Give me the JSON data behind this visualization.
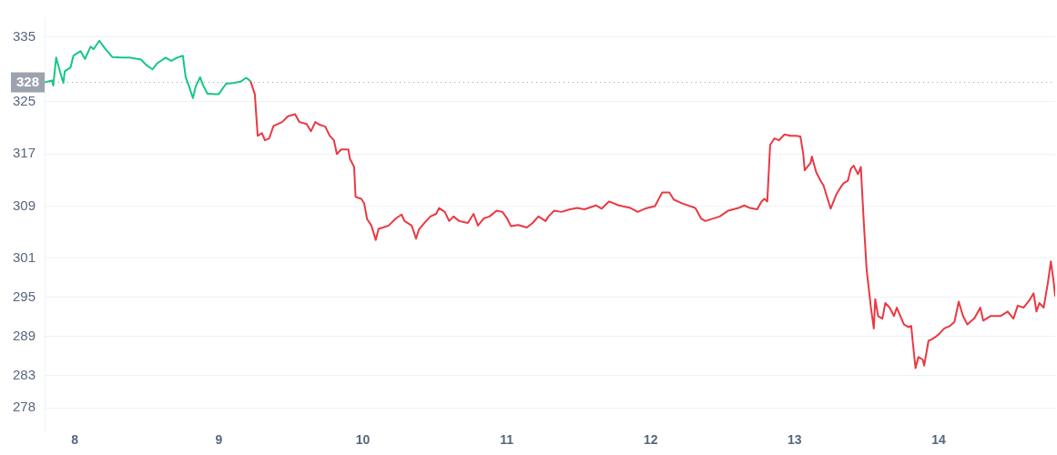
{
  "chart_data": {
    "type": "line",
    "xlim": [
      7.79,
      14.81
    ],
    "xticks": [
      8,
      9,
      10,
      11,
      12,
      13,
      14
    ],
    "ylim": [
      274.5,
      338
    ],
    "yticks": [
      278,
      283,
      289,
      295,
      301,
      309,
      317,
      325,
      335
    ],
    "grid": "y",
    "legend": false,
    "marker": "none",
    "line_style": "solid",
    "ref_lines": [
      {
        "axis": "y",
        "value": 328,
        "label": "328",
        "color": "#9ca3af",
        "line_style": "dotted"
      }
    ],
    "series": [
      {
        "color": "#16c784",
        "x": [
          7.79,
          7.84,
          7.85,
          7.87,
          7.9,
          7.92,
          7.93,
          7.97,
          7.99,
          8.04,
          8.07,
          8.11,
          8.13,
          8.17,
          8.21,
          8.26,
          8.33,
          8.38,
          8.46,
          8.5,
          8.54,
          8.57,
          8.63,
          8.67,
          8.71,
          8.75,
          8.77,
          8.79,
          8.82,
          8.84,
          8.87,
          8.89,
          8.92,
          8.97,
          9,
          9.05,
          9.1,
          9.15,
          9.19,
          9.22
        ],
        "values": [
          328,
          328.3,
          327.5,
          331.8,
          329.4,
          327.9,
          329.7,
          330.3,
          332.1,
          332.8,
          331.6,
          333.5,
          333.1,
          334.4,
          333.2,
          331.9,
          331.8,
          331.8,
          331.5,
          330.6,
          330,
          330.9,
          331.8,
          331.3,
          331.8,
          332.1,
          328.8,
          327.6,
          325.6,
          327.4,
          328.8,
          327.6,
          326.3,
          326.2,
          326.2,
          327.8,
          327.9,
          328.1,
          328.7,
          328.2
        ]
      },
      {
        "color": "#ea3943",
        "x": [
          9.22,
          9.25,
          9.27,
          9.3,
          9.32,
          9.35,
          9.38,
          9.44,
          9.48,
          9.53,
          9.56,
          9.61,
          9.64,
          9.67,
          9.7,
          9.74,
          9.77,
          9.8,
          9.82,
          9.85,
          9.9,
          9.91,
          9.94,
          9.95,
          9.99,
          10.01,
          10.03,
          10.06,
          10.09,
          10.11,
          10.14,
          10.18,
          10.23,
          10.27,
          10.29,
          10.34,
          10.37,
          10.39,
          10.44,
          10.47,
          10.51,
          10.53,
          10.57,
          10.6,
          10.63,
          10.67,
          10.73,
          10.77,
          10.8,
          10.84,
          10.88,
          10.93,
          10.97,
          11,
          11.03,
          11.08,
          11.14,
          11.18,
          11.22,
          11.27,
          11.29,
          11.33,
          11.38,
          11.44,
          11.49,
          11.54,
          11.62,
          11.66,
          11.71,
          11.78,
          11.86,
          11.91,
          11.96,
          12.03,
          12.08,
          12.13,
          12.16,
          12.22,
          12.31,
          12.35,
          12.38,
          12.48,
          12.54,
          12.61,
          12.65,
          12.69,
          12.74,
          12.77,
          12.79,
          12.81,
          12.83,
          12.86,
          12.89,
          12.93,
          12.97,
          13.01,
          13.04,
          13.06,
          13.07,
          13.11,
          13.12,
          13.15,
          13.18,
          13.2,
          13.25,
          13.29,
          13.32,
          13.34,
          13.37,
          13.39,
          13.41,
          13.44,
          13.46,
          13.48,
          13.5,
          13.53,
          13.55,
          13.56,
          13.58,
          13.61,
          13.63,
          13.66,
          13.69,
          13.71,
          13.74,
          13.76,
          13.79,
          13.81,
          13.82,
          13.84,
          13.86,
          13.89,
          13.9,
          13.93,
          13.95,
          13.98,
          14.01,
          14.04,
          14.08,
          14.11,
          14.14,
          14.17,
          14.2,
          14.25,
          14.29,
          14.31,
          14.36,
          14.43,
          14.48,
          14.52,
          14.55,
          14.59,
          14.63,
          14.66,
          14.68,
          14.7,
          14.73,
          14.76,
          14.78,
          14.8,
          14.81
        ],
        "values": [
          328.2,
          326.2,
          319.8,
          320.2,
          319.1,
          319.4,
          321.3,
          321.9,
          322.8,
          323.1,
          321.9,
          321.6,
          320.5,
          321.9,
          321.5,
          321.2,
          319.8,
          319.1,
          317,
          317.7,
          317.7,
          316.3,
          315,
          310.4,
          310.1,
          309.4,
          307,
          306,
          303.8,
          305.5,
          305.7,
          306,
          307.1,
          307.7,
          306.7,
          306,
          304,
          305.4,
          306.7,
          307.4,
          307.8,
          308.7,
          308.1,
          306.7,
          307.4,
          306.7,
          306.4,
          307.8,
          306,
          307.1,
          307.4,
          308.3,
          308.1,
          307.2,
          305.9,
          306.1,
          305.7,
          306.4,
          307.4,
          306.7,
          307.4,
          308.3,
          308.1,
          308.5,
          308.7,
          308.5,
          309.1,
          308.6,
          309.7,
          309.1,
          308.7,
          308.1,
          308.6,
          309,
          311.1,
          311.1,
          310,
          309.4,
          308.7,
          307.1,
          306.7,
          307.4,
          308.3,
          308.7,
          309.1,
          308.7,
          308.5,
          309.7,
          310.1,
          309.7,
          318.4,
          319.4,
          319.1,
          320,
          319.8,
          319.8,
          319.7,
          317,
          314.5,
          315.6,
          316.6,
          314.2,
          312.9,
          312.2,
          308.6,
          310.8,
          311.9,
          312.5,
          312.9,
          314.7,
          315.2,
          313.9,
          315,
          306.7,
          299.3,
          293.4,
          290.2,
          294.7,
          292.1,
          291.7,
          294.1,
          293.4,
          292.1,
          293.4,
          291.8,
          290.8,
          290.4,
          290.6,
          288.3,
          284.1,
          285.8,
          285.4,
          284.5,
          288.3,
          288.5,
          288.9,
          289.5,
          290.2,
          290.6,
          291.2,
          294.3,
          292.1,
          290.8,
          291.8,
          293.4,
          291.4,
          292.1,
          292.1,
          292.8,
          291.7,
          293.7,
          293.4,
          294.5,
          295.6,
          292.8,
          294.1,
          293.4,
          297.3,
          300.5,
          297.3,
          295.1
        ]
      }
    ]
  }
}
